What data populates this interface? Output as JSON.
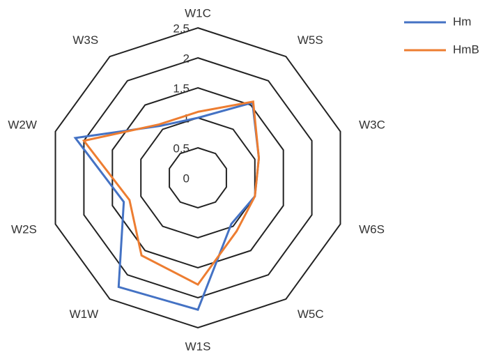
{
  "chart_data": {
    "type": "radar",
    "categories": [
      "W1C",
      "W5S",
      "W3C",
      "W6S",
      "W5C",
      "W1S",
      "W1W",
      "W2S",
      "W2W",
      "W3S"
    ],
    "series": [
      {
        "name": "Hm",
        "color": "#4472c4",
        "values": [
          1.0,
          1.55,
          1.07,
          1.0,
          0.95,
          2.2,
          2.25,
          1.3,
          2.15,
          1.07
        ]
      },
      {
        "name": "HmB",
        "color": "#ed7d31",
        "values": [
          1.1,
          1.57,
          1.07,
          1.0,
          1.1,
          1.78,
          1.6,
          1.2,
          2.0,
          1.1
        ]
      }
    ],
    "ylim": [
      0,
      2.5
    ],
    "yticks": [
      0,
      0.5,
      1,
      1.5,
      2,
      2.5
    ],
    "legend": "upper right"
  }
}
